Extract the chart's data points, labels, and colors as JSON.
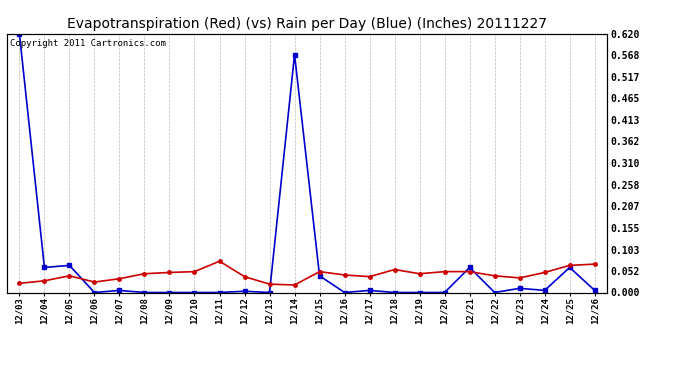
{
  "title": "Evapotranspiration (Red) (vs) Rain per Day (Blue) (Inches) 20111227",
  "copyright": "Copyright 2011 Cartronics.com",
  "x_labels": [
    "12/03",
    "12/04",
    "12/05",
    "12/06",
    "12/07",
    "12/08",
    "12/09",
    "12/10",
    "12/11",
    "12/12",
    "12/13",
    "12/14",
    "12/15",
    "12/16",
    "12/17",
    "12/18",
    "12/19",
    "12/20",
    "12/21",
    "12/22",
    "12/23",
    "12/24",
    "12/25",
    "12/26"
  ],
  "blue_data": [
    0.62,
    0.06,
    0.065,
    0.0,
    0.005,
    0.0,
    0.0,
    0.0,
    0.0,
    0.003,
    0.0,
    0.57,
    0.04,
    0.0,
    0.005,
    0.0,
    0.0,
    0.0,
    0.06,
    0.0,
    0.01,
    0.005,
    0.06,
    0.005
  ],
  "red_data": [
    0.022,
    0.028,
    0.04,
    0.025,
    0.033,
    0.045,
    0.048,
    0.05,
    0.075,
    0.038,
    0.02,
    0.018,
    0.05,
    0.042,
    0.038,
    0.055,
    0.045,
    0.05,
    0.05,
    0.04,
    0.035,
    0.048,
    0.065,
    0.068
  ],
  "ylim": [
    0.0,
    0.62
  ],
  "yticks": [
    0.0,
    0.052,
    0.103,
    0.155,
    0.207,
    0.258,
    0.31,
    0.362,
    0.413,
    0.465,
    0.517,
    0.568,
    0.62
  ],
  "background_color": "#ffffff",
  "grid_color": "#bbbbbb",
  "blue_color": "#0000cc",
  "red_color": "#cc0000",
  "title_fontsize": 10,
  "copyright_fontsize": 6.5
}
